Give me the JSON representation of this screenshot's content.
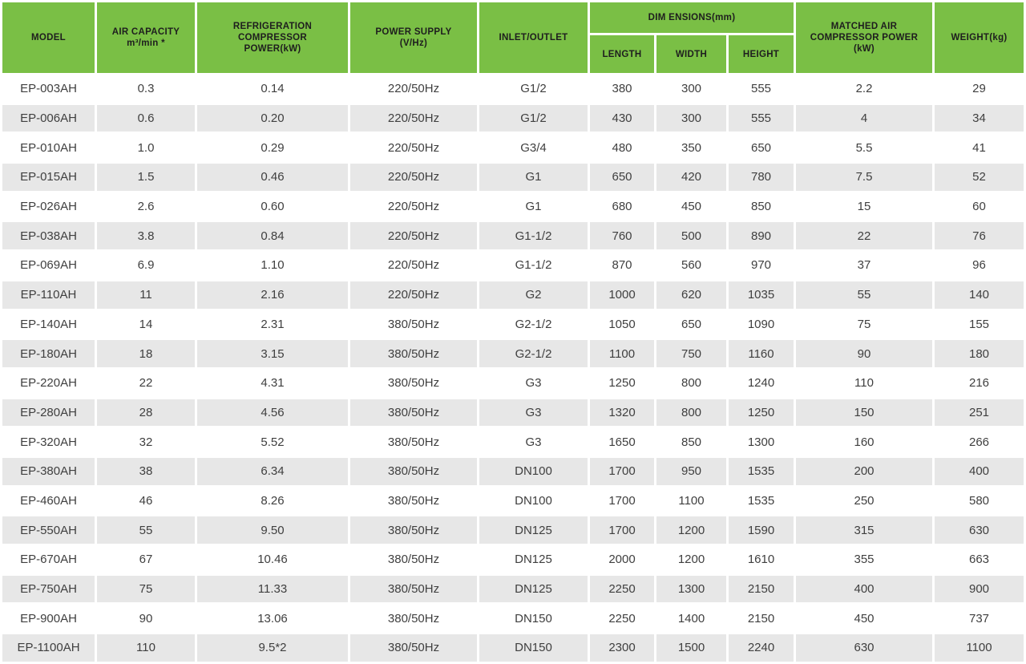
{
  "colors": {
    "header_green": "#7abf45",
    "stripe_gray": "#e7e7e7",
    "header_text": "#1e1e1e",
    "body_text": "#3f3f3f"
  },
  "table": {
    "header": {
      "model": "MODEL",
      "air_capacity_line1": "AIR CAPACITY",
      "air_capacity_line2": "m³/min *",
      "refrigeration_line1": "REFRIGERATION",
      "refrigeration_line2": "COMPRESSOR",
      "refrigeration_line3": "POWER(kW)",
      "power_supply_line1": "POWER SUPPLY",
      "power_supply_line2": "(V/Hz)",
      "inlet_outlet": "INLET/OUTLET",
      "dimensions_group": "DIM ENSIONS(mm)",
      "length": "LENGTH",
      "width": "WIDTH",
      "height": "HEIGHT",
      "matched_line1": "MATCHED AIR",
      "matched_line2": "COMPRESSOR POWER",
      "matched_line3": "(kW)",
      "weight": "WEIGHT(kg)"
    },
    "column_keys": [
      "model",
      "air-capacity",
      "refrigeration-compressor-power",
      "power-supply",
      "inlet-outlet",
      "length",
      "width",
      "height",
      "matched-air-compressor-power",
      "weight"
    ],
    "rows": [
      [
        "EP-003AH",
        "0.3",
        "0.14",
        "220/50Hz",
        "G1/2",
        "380",
        "300",
        "555",
        "2.2",
        "29"
      ],
      [
        "EP-006AH",
        "0.6",
        "0.20",
        "220/50Hz",
        "G1/2",
        "430",
        "300",
        "555",
        "4",
        "34"
      ],
      [
        "EP-010AH",
        "1.0",
        "0.29",
        "220/50Hz",
        "G3/4",
        "480",
        "350",
        "650",
        "5.5",
        "41"
      ],
      [
        "EP-015AH",
        "1.5",
        "0.46",
        "220/50Hz",
        "G1",
        "650",
        "420",
        "780",
        "7.5",
        "52"
      ],
      [
        "EP-026AH",
        "2.6",
        "0.60",
        "220/50Hz",
        "G1",
        "680",
        "450",
        "850",
        "15",
        "60"
      ],
      [
        "EP-038AH",
        "3.8",
        "0.84",
        "220/50Hz",
        "G1-1/2",
        "760",
        "500",
        "890",
        "22",
        "76"
      ],
      [
        "EP-069AH",
        "6.9",
        "1.10",
        "220/50Hz",
        "G1-1/2",
        "870",
        "560",
        "970",
        "37",
        "96"
      ],
      [
        "EP-110AH",
        "11",
        "2.16",
        "220/50Hz",
        "G2",
        "1000",
        "620",
        "1035",
        "55",
        "140"
      ],
      [
        "EP-140AH",
        "14",
        "2.31",
        "380/50Hz",
        "G2-1/2",
        "1050",
        "650",
        "1090",
        "75",
        "155"
      ],
      [
        "EP-180AH",
        "18",
        "3.15",
        "380/50Hz",
        "G2-1/2",
        "1100",
        "750",
        "1160",
        "90",
        "180"
      ],
      [
        "EP-220AH",
        "22",
        "4.31",
        "380/50Hz",
        "G3",
        "1250",
        "800",
        "1240",
        "110",
        "216"
      ],
      [
        "EP-280AH",
        "28",
        "4.56",
        "380/50Hz",
        "G3",
        "1320",
        "800",
        "1250",
        "150",
        "251"
      ],
      [
        "EP-320AH",
        "32",
        "5.52",
        "380/50Hz",
        "G3",
        "1650",
        "850",
        "1300",
        "160",
        "266"
      ],
      [
        "EP-380AH",
        "38",
        "6.34",
        "380/50Hz",
        "DN100",
        "1700",
        "950",
        "1535",
        "200",
        "400"
      ],
      [
        "EP-460AH",
        "46",
        "8.26",
        "380/50Hz",
        "DN100",
        "1700",
        "1100",
        "1535",
        "250",
        "580"
      ],
      [
        "EP-550AH",
        "55",
        "9.50",
        "380/50Hz",
        "DN125",
        "1700",
        "1200",
        "1590",
        "315",
        "630"
      ],
      [
        "EP-670AH",
        "67",
        "10.46",
        "380/50Hz",
        "DN125",
        "2000",
        "1200",
        "1610",
        "355",
        "663"
      ],
      [
        "EP-750AH",
        "75",
        "11.33",
        "380/50Hz",
        "DN125",
        "2250",
        "1300",
        "2150",
        "400",
        "900"
      ],
      [
        "EP-900AH",
        "90",
        "13.06",
        "380/50Hz",
        "DN150",
        "2250",
        "1400",
        "2150",
        "450",
        "737"
      ],
      [
        "EP-1100AH",
        "110",
        "9.5*2",
        "380/50Hz",
        "DN150",
        "2300",
        "1500",
        "2240",
        "630",
        "1100"
      ]
    ]
  }
}
